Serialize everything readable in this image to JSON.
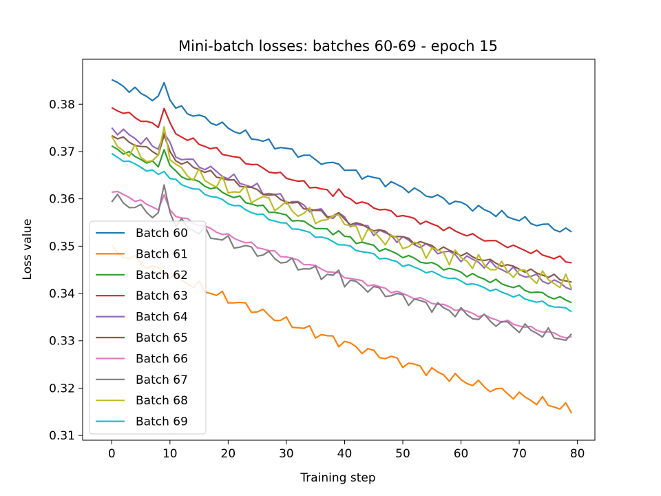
{
  "chart_data": {
    "type": "line",
    "title": "Mini-batch losses: batches 60-69 - epoch 15",
    "xlabel": "Training step",
    "ylabel": "Loss value",
    "xlim": [
      -5,
      83
    ],
    "ylim": [
      0.309,
      0.3895
    ],
    "xticks": [
      0,
      10,
      20,
      30,
      40,
      50,
      60,
      70,
      80
    ],
    "yticks": [
      0.31,
      0.32,
      0.33,
      0.34,
      0.35,
      0.36,
      0.37,
      0.38
    ],
    "ytick_labels": [
      "0.31",
      "0.32",
      "0.33",
      "0.34",
      "0.35",
      "0.36",
      "0.37",
      "0.38"
    ],
    "legend_position": "lower-left",
    "grid": false,
    "series": [
      {
        "name": "Batch 60",
        "color": "#1f77b4",
        "start": 0.3848,
        "end": 0.3505,
        "spike": 0.0045,
        "dip40": 0.0012,
        "phase": 0.3,
        "noise": 0.0006
      },
      {
        "name": "Batch 61",
        "color": "#ff7f0e",
        "start": 0.3492,
        "end": 0.3128,
        "spike": 0.0,
        "dip40": 0.0,
        "phase": 1.1,
        "noise": 0.0008
      },
      {
        "name": "Batch 62",
        "color": "#2ca02c",
        "start": 0.371,
        "end": 0.3358,
        "spike": 0.0042,
        "dip40": 0.001,
        "phase": 2.0,
        "noise": 0.0004
      },
      {
        "name": "Batch 63",
        "color": "#d62728",
        "start": 0.3793,
        "end": 0.3442,
        "spike": 0.0048,
        "dip40": 0.0012,
        "phase": 2.7,
        "noise": 0.0004
      },
      {
        "name": "Batch 64",
        "color": "#9467bd",
        "start": 0.375,
        "end": 0.3388,
        "spike": 0.004,
        "dip40": 0.001,
        "phase": 3.5,
        "noise": 0.0007
      },
      {
        "name": "Batch 65",
        "color": "#8c564b",
        "start": 0.3735,
        "end": 0.3402,
        "spike": 0.004,
        "dip40": 0.001,
        "phase": 4.2,
        "noise": 0.0004
      },
      {
        "name": "Batch 66",
        "color": "#e377c2",
        "start": 0.3618,
        "end": 0.3282,
        "spike": 0.003,
        "dip40": 0.0,
        "phase": 5.0,
        "noise": 0.0003
      },
      {
        "name": "Batch 67",
        "color": "#7f7f7f",
        "start": 0.3602,
        "end": 0.3279,
        "spike": 0.0065,
        "dip40": 0.0012,
        "phase": 5.8,
        "noise": 0.0009
      },
      {
        "name": "Batch 68",
        "color": "#bcbd22",
        "start": 0.3715,
        "end": 0.3395,
        "spike": 0.0085,
        "dip40": 0.004,
        "phase": 0.8,
        "noise": 0.0013
      },
      {
        "name": "Batch 69",
        "color": "#17becf",
        "start": 0.3693,
        "end": 0.3339,
        "spike": 0.0012,
        "dip40": 0.0,
        "phase": 1.6,
        "noise": 0.0003
      }
    ],
    "steps": 80
  }
}
